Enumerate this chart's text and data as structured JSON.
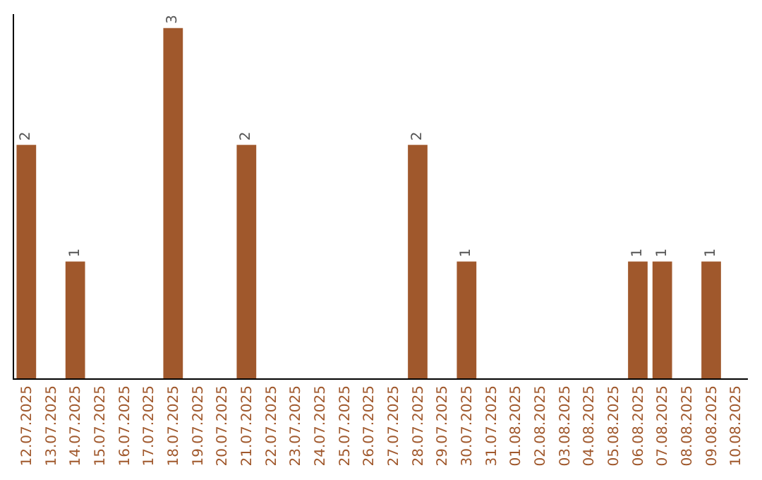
{
  "chart_data": {
    "type": "bar",
    "categories": [
      "12.07.2025",
      "13.07.2025",
      "14.07.2025",
      "15.07.2025",
      "16.07.2025",
      "17.07.2025",
      "18.07.2025",
      "19.07.2025",
      "20.07.2025",
      "21.07.2025",
      "22.07.2025",
      "23.07.2025",
      "24.07.2025",
      "25.07.2025",
      "26.07.2025",
      "27.07.2025",
      "28.07.2025",
      "29.07.2025",
      "30.07.2025",
      "31.07.2025",
      "01.08.2025",
      "02.08.2025",
      "03.08.2025",
      "04.08.2025",
      "05.08.2025",
      "06.08.2025",
      "07.08.2025",
      "08.08.2025",
      "09.08.2025",
      "10.08.2025"
    ],
    "values": [
      2,
      0,
      1,
      0,
      0,
      0,
      3,
      0,
      0,
      2,
      0,
      0,
      0,
      0,
      0,
      0,
      2,
      0,
      1,
      0,
      0,
      0,
      0,
      0,
      0,
      1,
      1,
      0,
      1,
      0
    ],
    "value_labels": [
      "2",
      null,
      "1",
      null,
      null,
      null,
      "3",
      null,
      null,
      "2",
      null,
      null,
      null,
      null,
      null,
      null,
      "2",
      null,
      "1",
      null,
      null,
      null,
      null,
      null,
      null,
      "1",
      "1",
      null,
      "1",
      null
    ],
    "color": "#a0582c",
    "ylim": [
      0,
      3.12
    ]
  }
}
